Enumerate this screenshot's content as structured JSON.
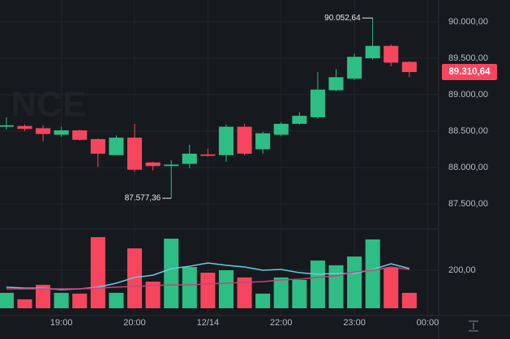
{
  "chart_data": {
    "type": "candlestick",
    "watermark": "NCE",
    "up_color": "#2ebd85",
    "down_color": "#f6465d",
    "grid": true,
    "candles": [
      {
        "open": 88560,
        "high": 88690,
        "low": 88520,
        "close": 88580
      },
      {
        "open": 88570,
        "high": 88590,
        "low": 88500,
        "close": 88530
      },
      {
        "open": 88540,
        "high": 88580,
        "low": 88360,
        "close": 88460
      },
      {
        "open": 88450,
        "high": 88560,
        "low": 88420,
        "close": 88510
      },
      {
        "open": 88510,
        "high": 88520,
        "low": 88370,
        "close": 88380
      },
      {
        "open": 88390,
        "high": 88400,
        "low": 88010,
        "close": 88190
      },
      {
        "open": 88170,
        "high": 88440,
        "low": 88170,
        "close": 88410
      },
      {
        "open": 88410,
        "high": 88600,
        "low": 87940,
        "close": 87970
      },
      {
        "open": 88070,
        "high": 88080,
        "low": 87960,
        "close": 88020
      },
      {
        "open": 88020,
        "high": 88100,
        "low": 87577.36,
        "close": 88040
      },
      {
        "open": 88050,
        "high": 88310,
        "low": 87990,
        "close": 88190
      },
      {
        "open": 88180,
        "high": 88260,
        "low": 88150,
        "close": 88160
      },
      {
        "open": 88170,
        "high": 88590,
        "low": 88080,
        "close": 88560
      },
      {
        "open": 88560,
        "high": 88600,
        "low": 88170,
        "close": 88190
      },
      {
        "open": 88250,
        "high": 88490,
        "low": 88190,
        "close": 88470
      },
      {
        "open": 88450,
        "high": 88620,
        "low": 88430,
        "close": 88600
      },
      {
        "open": 88600,
        "high": 88760,
        "low": 88590,
        "close": 88710
      },
      {
        "open": 88690,
        "high": 89310,
        "low": 88670,
        "close": 89070
      },
      {
        "open": 89060,
        "high": 89350,
        "low": 89050,
        "close": 89240
      },
      {
        "open": 89220,
        "high": 89560,
        "low": 89200,
        "close": 89520
      },
      {
        "open": 89500,
        "high": 90052.64,
        "low": 89480,
        "close": 89670
      },
      {
        "open": 89670,
        "high": 89690,
        "low": 89390,
        "close": 89440
      },
      {
        "open": 89450,
        "high": 89460,
        "low": 89240,
        "close": 89310.64
      }
    ],
    "ylim": [
      87156,
      90300
    ],
    "yticks": [
      {
        "value": 87500,
        "label": "87.500,00"
      },
      {
        "value": 88000,
        "label": "88.000,00"
      },
      {
        "value": 88500,
        "label": "88.500,00"
      },
      {
        "value": 89000,
        "label": "89.000,00"
      },
      {
        "value": 89500,
        "label": "89.500,00"
      },
      {
        "value": 90000,
        "label": "90.000,00"
      }
    ],
    "xlim": [
      -0.35,
      23.6
    ],
    "xticks": [
      {
        "value": 3,
        "label": "19:00"
      },
      {
        "value": 7,
        "label": "20:00"
      },
      {
        "value": 11,
        "label": "12/14"
      },
      {
        "value": 15,
        "label": "22:00"
      },
      {
        "value": 19,
        "label": "23:00"
      },
      {
        "value": 23,
        "label": "00:00"
      }
    ],
    "high_label": {
      "value": 90052.64,
      "label": "90.052,64"
    },
    "low_label": {
      "value": 87577.36,
      "label": "87.577,36"
    },
    "last_price": {
      "value": 89310.64,
      "label": "89.310,64"
    },
    "volume": [
      81,
      47,
      123,
      81,
      77,
      374,
      81,
      315,
      140,
      366,
      217,
      187,
      200,
      162,
      77,
      162,
      149,
      251,
      226,
      272,
      362,
      213,
      81
    ],
    "volume_ylim": [
      0,
      417
    ],
    "volume_yticks": [
      {
        "value": 200,
        "label": "200,00"
      }
    ],
    "volume_ma": [
      {
        "color": "#6fc8e0",
        "values": [
          111,
          106,
          106,
          98,
          102,
          111,
          132,
          162,
          174,
          208,
          221,
          238,
          226,
          217,
          200,
          204,
          187,
          179,
          183,
          183,
          204,
          234,
          209
        ]
      },
      {
        "color": "#c2467a",
        "values": [
          102,
          102,
          102,
          102,
          102,
          106,
          111,
          115,
          119,
          123,
          123,
          128,
          132,
          136,
          140,
          149,
          153,
          162,
          170,
          191,
          200,
          217,
          204
        ]
      }
    ]
  }
}
